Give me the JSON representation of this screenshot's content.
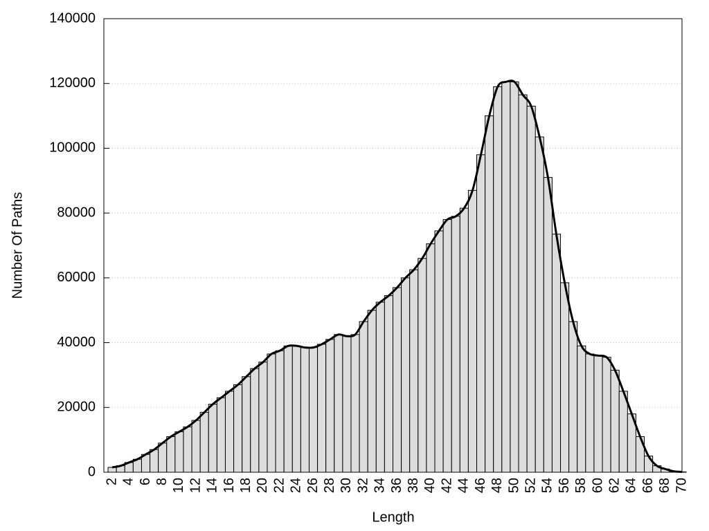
{
  "chart_data": {
    "type": "histogram",
    "xlabel": "Length",
    "ylabel": "Number Of Paths",
    "x": [
      2,
      3,
      4,
      5,
      6,
      7,
      8,
      9,
      10,
      11,
      12,
      13,
      14,
      15,
      16,
      17,
      18,
      19,
      20,
      21,
      22,
      23,
      24,
      25,
      26,
      27,
      28,
      29,
      30,
      31,
      32,
      33,
      34,
      35,
      36,
      37,
      38,
      39,
      40,
      41,
      42,
      43,
      44,
      45,
      46,
      47,
      48,
      49,
      50,
      51,
      52,
      53,
      54,
      55,
      56,
      57,
      58,
      59,
      60,
      61,
      62,
      63,
      64,
      65,
      66,
      67,
      68,
      69,
      70
    ],
    "values": [
      1500,
      2000,
      3000,
      4000,
      5500,
      7000,
      9000,
      11000,
      12500,
      14000,
      16000,
      18500,
      21000,
      23000,
      25000,
      27000,
      29500,
      32000,
      34000,
      36500,
      37500,
      39000,
      39000,
      38500,
      38500,
      39500,
      41000,
      42500,
      42000,
      42500,
      46500,
      50000,
      52500,
      54500,
      57000,
      60000,
      62500,
      66000,
      70500,
      74500,
      78000,
      79000,
      81500,
      87000,
      98000,
      110000,
      119000,
      120500,
      120500,
      116500,
      113000,
      103500,
      91000,
      73500,
      58500,
      46500,
      39000,
      36500,
      36000,
      35500,
      31500,
      25000,
      18000,
      11000,
      5000,
      2000,
      1000,
      300,
      100
    ],
    "bar_color": "#dddddd",
    "edge_color": "#000000",
    "line_color": "#000000",
    "smooth_line": true,
    "xlim": [
      1,
      70
    ],
    "xticks": [
      2,
      4,
      6,
      8,
      10,
      12,
      14,
      16,
      18,
      20,
      22,
      24,
      26,
      28,
      30,
      32,
      34,
      36,
      38,
      40,
      42,
      44,
      46,
      48,
      50,
      52,
      54,
      56,
      58,
      60,
      62,
      64,
      66,
      68,
      70
    ],
    "ylim": [
      0,
      140000
    ],
    "yticks": [
      0,
      20000,
      40000,
      60000,
      80000,
      100000,
      120000,
      140000
    ],
    "grid": true
  }
}
